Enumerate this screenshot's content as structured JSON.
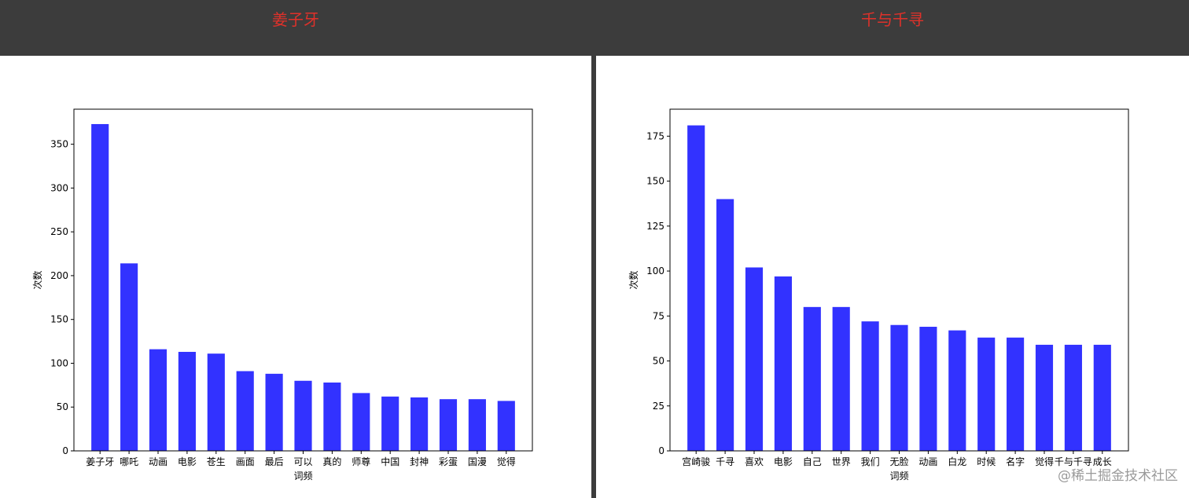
{
  "panels": [
    {
      "title": "姜子牙"
    },
    {
      "title": "千与千寻"
    }
  ],
  "watermark": "@稀土掘金技术社区",
  "chart_data": [
    {
      "type": "bar",
      "title": "",
      "xlabel": "词频",
      "ylabel": "次数",
      "categories": [
        "姜子牙",
        "哪吒",
        "动画",
        "电影",
        "苍生",
        "画面",
        "最后",
        "可以",
        "真的",
        "师尊",
        "中国",
        "封神",
        "彩蛋",
        "国漫",
        "觉得"
      ],
      "values": [
        373,
        214,
        116,
        113,
        111,
        91,
        88,
        80,
        78,
        66,
        62,
        61,
        59,
        59,
        57
      ],
      "ylim": [
        0,
        390
      ],
      "yticks": [
        0,
        50,
        100,
        150,
        200,
        250,
        300,
        350
      ],
      "bar_color": "#3232ff",
      "grid": false
    },
    {
      "type": "bar",
      "title": "",
      "xlabel": "词频",
      "ylabel": "次数",
      "categories": [
        "宫崎骏",
        "千寻",
        "喜欢",
        "电影",
        "自己",
        "世界",
        "我们",
        "无脸",
        "动画",
        "白龙",
        "时候",
        "名字",
        "觉得",
        "千与千寻",
        "成长"
      ],
      "values": [
        181,
        140,
        102,
        97,
        80,
        80,
        72,
        70,
        69,
        67,
        63,
        63,
        59,
        59,
        59
      ],
      "ylim": [
        0,
        190
      ],
      "yticks": [
        0,
        25,
        50,
        75,
        100,
        125,
        150,
        175
      ],
      "bar_color": "#3232ff",
      "grid": false
    }
  ]
}
